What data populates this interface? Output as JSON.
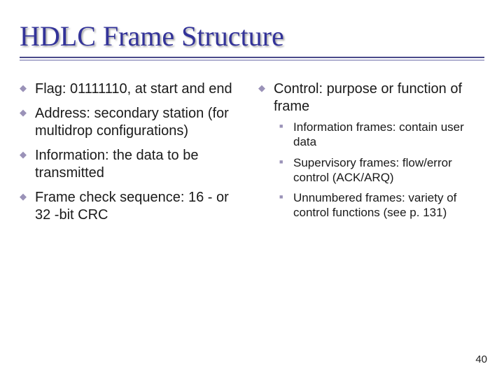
{
  "theme": {
    "title_color": "#333399",
    "bullet_color": "#9a92b8",
    "text_color": "#1a1a1a",
    "accent_color": "#5a4a99",
    "rule_top_color": "#4a4a8a",
    "rule_bot_color": "#b0b0d0",
    "background": "#ffffff"
  },
  "title": "HDLC Frame Structure",
  "left_bullets": [
    "Flag: 01111110, at start and end",
    "Address: secondary station (for multidrop configurations)",
    "Information: the data to be transmitted",
    "Frame check sequence: 16 - or 32 -bit CRC"
  ],
  "right_bullets": [
    {
      "text": "Control: purpose or function of frame",
      "sub": [
        {
          "accent": "I",
          "rest": "nformation frames: contain user data"
        },
        {
          "accent": "S",
          "rest": "upervisory frames: flow/error control (ACK/ARQ)"
        },
        {
          "accent": "U",
          "rest": "nnumbered frames: variety of control functions (see p. 131)"
        }
      ]
    }
  ],
  "page_number": "40"
}
